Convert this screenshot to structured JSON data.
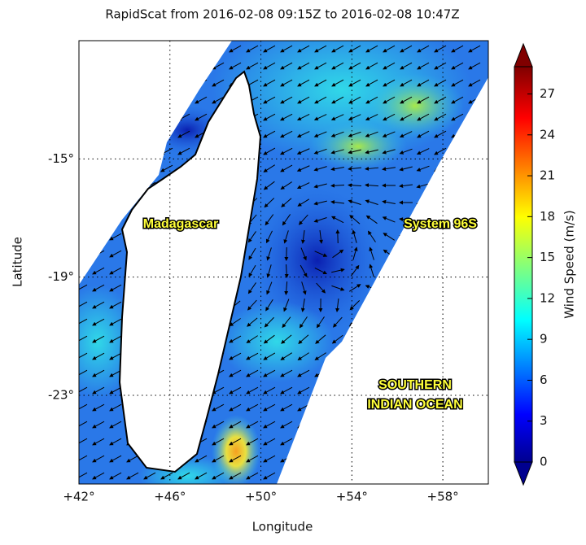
{
  "chart_data": {
    "type": "map",
    "title": "RapidScat  from 2016-02-08 09:15Z to 2016-02-08 10:47Z",
    "xlabel": "Longitude",
    "ylabel": "Latitude",
    "xlim": [
      42,
      60
    ],
    "ylim": [
      -26,
      -11
    ],
    "xticks": [
      {
        "value": 42,
        "label": "+42°"
      },
      {
        "value": 46,
        "label": "+46°"
      },
      {
        "value": 50,
        "label": "+50°"
      },
      {
        "value": 54,
        "label": "+54°"
      },
      {
        "value": 58,
        "label": "+58°"
      }
    ],
    "yticks": [
      {
        "value": -15,
        "label": "-15°"
      },
      {
        "value": -19,
        "label": "-19°"
      },
      {
        "value": -23,
        "label": "-23°"
      }
    ],
    "grid": true,
    "colorbar": {
      "label": "Wind Speed (m/s)",
      "lim": [
        0,
        29
      ],
      "ticks": [
        0,
        3,
        6,
        9,
        12,
        15,
        18,
        21,
        24,
        27
      ]
    },
    "annotations": [
      "Madagascar",
      "System 96S",
      "SOUTHERN",
      "INDIAN OCEAN"
    ]
  }
}
